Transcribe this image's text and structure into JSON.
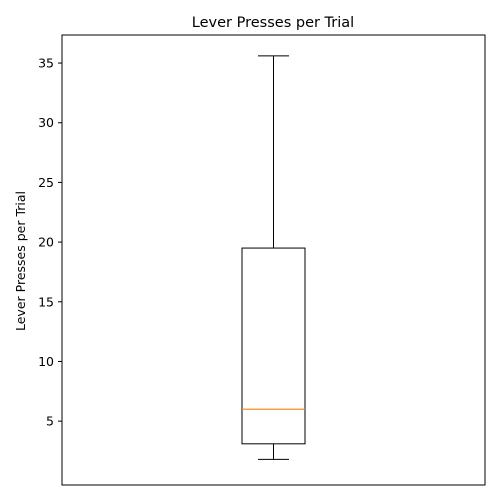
{
  "chart_data": {
    "type": "box",
    "title": "Lever Presses per Trial",
    "xlabel": "",
    "ylabel": "Lever Presses per Trial",
    "ylim": [
      -0.35,
      37.35
    ],
    "yticks": [
      5,
      10,
      15,
      20,
      25,
      30,
      35
    ],
    "grid": false,
    "legend": null,
    "boxes": [
      {
        "whisker_low": 1.8,
        "q1": 3.1,
        "median": 6.0,
        "q3": 19.5,
        "whisker_high": 35.6
      }
    ],
    "colors": {
      "box": "#000000",
      "median": "#ff7f0e",
      "whisker": "#000000",
      "cap": "#000000"
    }
  }
}
